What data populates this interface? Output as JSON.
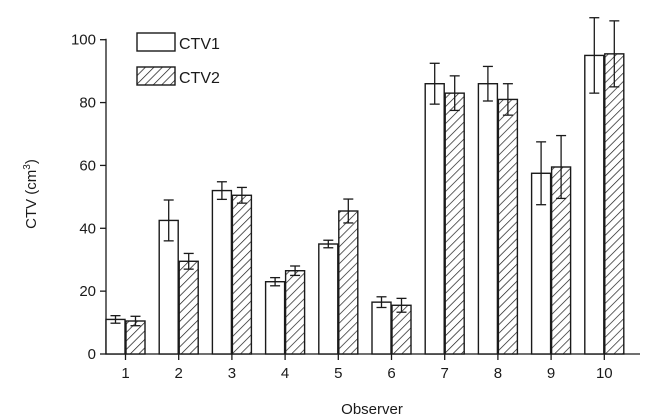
{
  "chart_data": {
    "type": "bar",
    "title": "",
    "xlabel": "Observer",
    "ylabel": "CTV (cm",
    "ylabel_superscript": "3",
    "ylabel_suffix": ")",
    "categories": [
      "1",
      "2",
      "3",
      "4",
      "5",
      "6",
      "7",
      "8",
      "9",
      "10"
    ],
    "ylim": [
      0,
      105
    ],
    "yticks": [
      0,
      20,
      40,
      60,
      80,
      100
    ],
    "grid": false,
    "legend_position": "top-left",
    "series": [
      {
        "name": "CTV1",
        "pattern": "hollow",
        "values": [
          11,
          42.5,
          52,
          23,
          35,
          16.5,
          86,
          86,
          57.5,
          95
        ],
        "errors": [
          1.2,
          6.5,
          2.8,
          1.3,
          1.2,
          1.7,
          6.5,
          5.5,
          10,
          12
        ]
      },
      {
        "name": "CTV2",
        "pattern": "hatched",
        "values": [
          10.5,
          29.5,
          50.5,
          26.5,
          45.5,
          15.5,
          83,
          81,
          59.5,
          95.5
        ],
        "errors": [
          1.5,
          2.5,
          2.5,
          1.5,
          3.8,
          2.2,
          5.5,
          5,
          10,
          10.5
        ]
      }
    ],
    "colors": {
      "ink": "#1a1a1a",
      "fill": "#ffffff"
    }
  }
}
